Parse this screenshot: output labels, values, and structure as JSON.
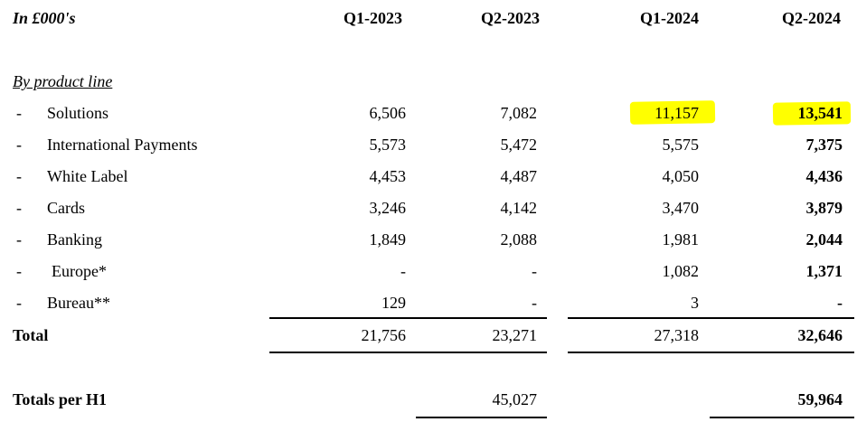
{
  "header": {
    "unit": "In £000's",
    "columns": [
      "Q1-2023",
      "Q2-2023",
      "Q1-2024",
      "Q2-2024"
    ]
  },
  "section": "By product line",
  "bullet": "-",
  "rows": [
    {
      "label": "Solutions",
      "values": [
        "6,506",
        "7,082",
        "11,157",
        "13,541"
      ]
    },
    {
      "label": "International Payments",
      "values": [
        "5,573",
        "5,472",
        "5,575",
        "7,375"
      ]
    },
    {
      "label": "White Label",
      "values": [
        "4,453",
        "4,487",
        "4,050",
        "4,436"
      ]
    },
    {
      "label": "Cards",
      "values": [
        "3,246",
        "4,142",
        "3,470",
        "3,879"
      ]
    },
    {
      "label": "Banking",
      "values": [
        "1,849",
        "2,088",
        "1,981",
        "2,044"
      ]
    },
    {
      "label": "Europe*",
      "values": [
        "-",
        "-",
        "1,082",
        "1,371"
      ]
    },
    {
      "label": "Bureau**",
      "values": [
        "129",
        "-",
        "3",
        "-"
      ]
    }
  ],
  "total": {
    "label": "Total",
    "values": [
      "21,756",
      "23,271",
      "27,318",
      "32,646"
    ]
  },
  "h1": {
    "label": "Totals per H1",
    "values": [
      "45,027",
      "59,964"
    ]
  }
}
